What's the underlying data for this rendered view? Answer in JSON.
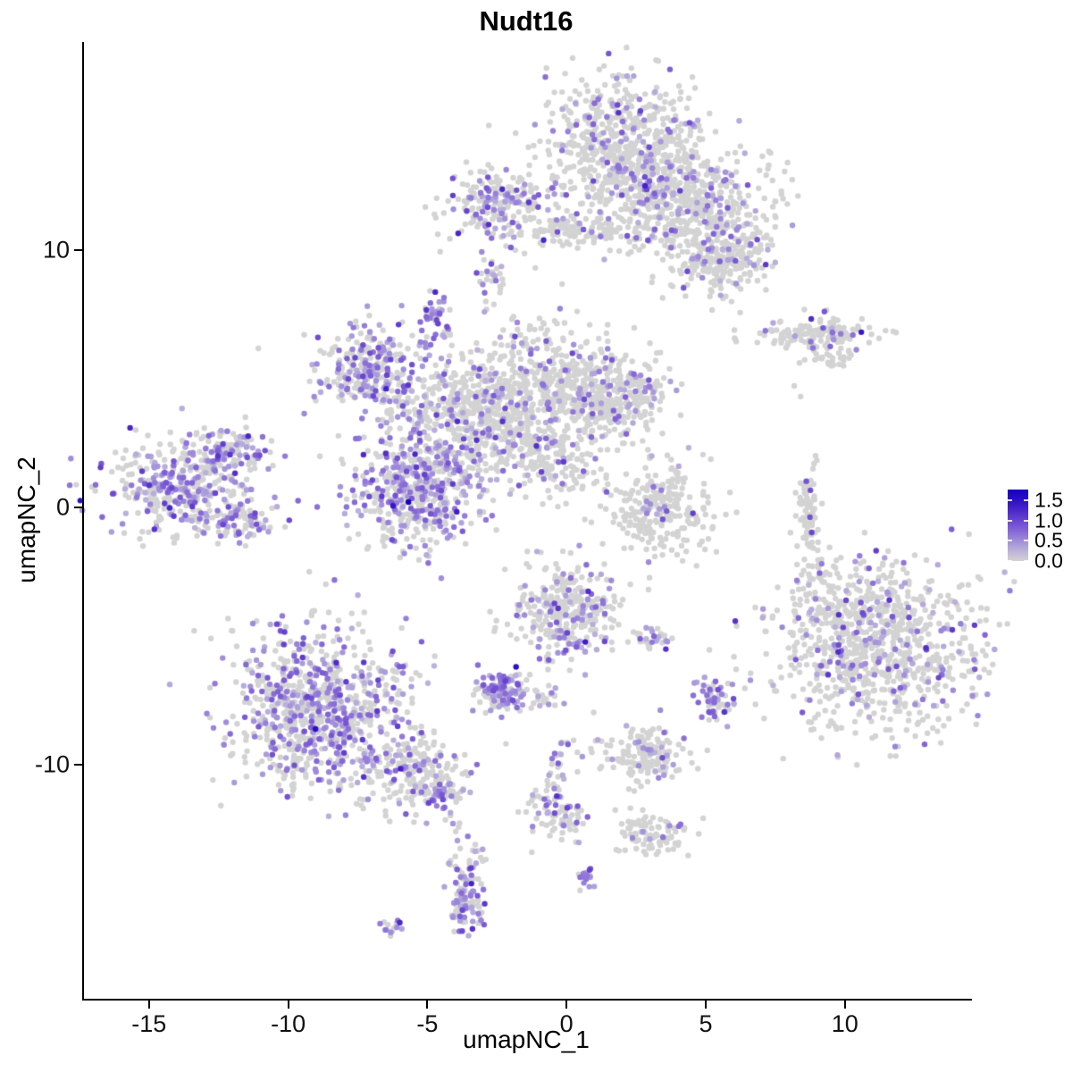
{
  "chart_data": {
    "type": "scatter",
    "title": "Nudt16",
    "xlabel": "umapNC_1",
    "ylabel": "umapNC_2",
    "xlim": [
      -17.4,
      14.5
    ],
    "ylim": [
      -19.1,
      18.09
    ],
    "x_ticks": [
      -15,
      -10,
      -5,
      0,
      5,
      10
    ],
    "y_ticks": [
      10,
      0,
      -10
    ],
    "grid": false,
    "point_radius_px": 3.2,
    "colors": {
      "background": "#ffffff",
      "axis": "#000000",
      "text": "#000000",
      "base_point": "#d3d3d3",
      "gradient_anchors": [
        [
          0.0,
          "#d3d3d3"
        ],
        [
          0.35,
          "#b2a6dc"
        ],
        [
          0.7,
          "#896cd8"
        ],
        [
          1.0,
          "#6a46d0"
        ],
        [
          1.35,
          "#401cc8"
        ],
        [
          1.7,
          "#1500c0"
        ]
      ]
    },
    "legend": {
      "labels": [
        "1.5",
        "1.0",
        "0.5",
        "0.0"
      ],
      "tick_values": [
        1.5,
        1.0,
        0.5,
        0.0
      ],
      "vmax": 1.77,
      "position": "right"
    },
    "expression": {
      "seed": 42,
      "value_base": 0.25,
      "value_spread": 0.38,
      "value_max": 1.55
    },
    "clusters": [
      {
        "name": "top-main",
        "x": 1.93,
        "y": 14.0,
        "sx": 1.44,
        "sy": 1.39,
        "n": 600,
        "frac": 0.18
      },
      {
        "name": "top-mid",
        "x": 3.53,
        "y": 12.26,
        "sx": 1.12,
        "sy": 1.04,
        "n": 300,
        "frac": 0.12
      },
      {
        "name": "top-right",
        "x": 5.3,
        "y": 11.04,
        "sx": 1.28,
        "sy": 1.22,
        "n": 350,
        "frac": 0.14
      },
      {
        "name": "top-right-arm",
        "x": 5.62,
        "y": 9.65,
        "sx": 0.8,
        "sy": 0.69,
        "n": 150,
        "frac": 0.14
      },
      {
        "name": "upper-left",
        "x": -2.41,
        "y": 11.74,
        "sx": 0.96,
        "sy": 0.63,
        "n": 220,
        "frac": 0.38
      },
      {
        "name": "upper-bridge",
        "x": 0.64,
        "y": 10.76,
        "sx": 1.44,
        "sy": 0.28,
        "n": 120,
        "frac": 0.08
      },
      {
        "name": "upper-left-tiny",
        "x": -2.73,
        "y": 8.89,
        "sx": 0.26,
        "sy": 0.35,
        "n": 25,
        "frac": 0.3
      },
      {
        "name": "right-ribbon",
        "x": 8.83,
        "y": 6.81,
        "sx": 1.12,
        "sy": 0.31,
        "n": 140,
        "frac": 0.1
      },
      {
        "name": "right-ribbon-tail",
        "x": 9.63,
        "y": 5.83,
        "sx": 0.45,
        "sy": 0.24,
        "n": 30,
        "frac": 0.05
      },
      {
        "name": "mid-left-wing",
        "x": -7.06,
        "y": 5.31,
        "sx": 0.96,
        "sy": 0.87,
        "n": 280,
        "frac": 0.45
      },
      {
        "name": "mid-knob",
        "x": -4.72,
        "y": 7.4,
        "sx": 0.29,
        "sy": 0.42,
        "n": 40,
        "frac": 0.7
      },
      {
        "name": "center-west",
        "x": -3.69,
        "y": 3.4,
        "sx": 1.44,
        "sy": 1.22,
        "n": 500,
        "frac": 0.2
      },
      {
        "name": "center-north",
        "x": -0.8,
        "y": 4.79,
        "sx": 1.44,
        "sy": 1.22,
        "n": 450,
        "frac": 0.16
      },
      {
        "name": "center-east",
        "x": 1.44,
        "y": 4.27,
        "sx": 1.12,
        "sy": 0.87,
        "n": 300,
        "frac": 0.2
      },
      {
        "name": "center-tail",
        "x": -0.96,
        "y": 2.01,
        "sx": 1.12,
        "sy": 0.62,
        "n": 180,
        "frac": 0.15,
        "rot": -25
      },
      {
        "name": "center-south-dense",
        "x": -5.29,
        "y": 0.63,
        "sx": 1.22,
        "sy": 1.04,
        "n": 450,
        "frac": 0.5
      },
      {
        "name": "far-left",
        "x": -13.8,
        "y": 0.8,
        "sx": 1.35,
        "sy": 1.04,
        "n": 420,
        "frac": 0.45
      },
      {
        "name": "far-left-arm-ne",
        "x": -11.87,
        "y": 2.19,
        "sx": 0.64,
        "sy": 0.42,
        "n": 80,
        "frac": 0.4
      },
      {
        "name": "far-left-arm-e",
        "x": -11.55,
        "y": -0.59,
        "sx": 0.58,
        "sy": 0.35,
        "n": 60,
        "frac": 0.35
      },
      {
        "name": "mid-right-mushroom",
        "x": 3.37,
        "y": -0.07,
        "sx": 0.9,
        "sy": 0.87,
        "n": 250,
        "frac": 0.07
      },
      {
        "name": "right-sliver",
        "x": 8.66,
        "y": -0.07,
        "sx": 0.22,
        "sy": 0.87,
        "n": 80,
        "frac": 0.06
      },
      {
        "name": "right-big",
        "x": 11.23,
        "y": -5.28,
        "sx": 1.76,
        "sy": 1.67,
        "n": 900,
        "frac": 0.17
      },
      {
        "name": "right-big-spray",
        "x": 9.31,
        "y": -2.85,
        "sx": 0.8,
        "sy": 0.6,
        "n": 40,
        "frac": 0.05
      },
      {
        "name": "bottom-center",
        "x": 0.0,
        "y": -4.06,
        "sx": 0.96,
        "sy": 0.97,
        "n": 320,
        "frac": 0.28
      },
      {
        "name": "bottom-knot",
        "x": -2.34,
        "y": -7.08,
        "sx": 0.51,
        "sy": 0.42,
        "n": 120,
        "frac": 0.6
      },
      {
        "name": "bottom-knot-east",
        "x": -0.96,
        "y": -7.36,
        "sx": 0.35,
        "sy": 0.24,
        "n": 20,
        "frac": 0.3
      },
      {
        "name": "small-pair",
        "x": 3.11,
        "y": -5.1,
        "sx": 0.38,
        "sy": 0.21,
        "n": 30,
        "frac": 0.35
      },
      {
        "name": "small-east",
        "x": 5.39,
        "y": -7.43,
        "sx": 0.32,
        "sy": 0.42,
        "n": 60,
        "frac": 0.5
      },
      {
        "name": "bottom-left-main",
        "x": -8.99,
        "y": -7.71,
        "sx": 1.54,
        "sy": 1.56,
        "n": 800,
        "frac": 0.4
      },
      {
        "name": "bottom-left-tail",
        "x": -5.62,
        "y": -10.31,
        "sx": 0.96,
        "sy": 0.76,
        "n": 200,
        "frac": 0.3
      },
      {
        "name": "bottom-left-tip",
        "x": -4.43,
        "y": -11.11,
        "sx": 0.38,
        "sy": 0.35,
        "n": 50,
        "frac": 0.35
      },
      {
        "name": "bottom-mid-east",
        "x": 2.79,
        "y": -9.62,
        "sx": 0.71,
        "sy": 0.52,
        "n": 150,
        "frac": 0.12
      },
      {
        "name": "strand",
        "x": -0.55,
        "y": -10.83,
        "sx": 0.3,
        "sy": 1.04,
        "n": 60,
        "frac": 0.3,
        "rot": -22
      },
      {
        "name": "strand-foot",
        "x": -0.1,
        "y": -12.15,
        "sx": 0.35,
        "sy": 0.42,
        "n": 50,
        "frac": 0.3
      },
      {
        "name": "strand-east",
        "x": 3.05,
        "y": -12.74,
        "sx": 0.64,
        "sy": 0.38,
        "n": 100,
        "frac": 0.12
      },
      {
        "name": "tiny-dense",
        "x": 0.67,
        "y": -14.38,
        "sx": 0.16,
        "sy": 0.28,
        "n": 18,
        "frac": 0.7
      },
      {
        "name": "bottom-blob",
        "x": -3.53,
        "y": -15.0,
        "sx": 0.32,
        "sy": 0.83,
        "n": 120,
        "frac": 0.45
      },
      {
        "name": "bottom-tiny",
        "x": -6.26,
        "y": -16.39,
        "sx": 0.22,
        "sy": 0.19,
        "n": 14,
        "frac": 0.6
      }
    ],
    "singles": [
      [
        -4.43,
        -11.7,
        0.5
      ],
      [
        -4.17,
        -11.98,
        0
      ],
      [
        -4.08,
        -12.29,
        0.45
      ],
      [
        -3.98,
        -12.6,
        0
      ],
      [
        -3.92,
        -12.95,
        0.4
      ],
      [
        -3.82,
        -13.26,
        0
      ],
      [
        -11.07,
        6.18,
        0
      ],
      [
        -1.12,
        9.31,
        0
      ],
      [
        -0.16,
        8.68,
        0
      ],
      [
        8.18,
        4.72,
        0
      ],
      [
        8.41,
        4.31,
        0
      ],
      [
        8.28,
        -2.22,
        0
      ],
      [
        4.17,
        -2.08,
        0
      ],
      [
        3.37,
        -7.88,
        0.5
      ],
      [
        -2.9,
        8.0,
        0
      ],
      [
        -2.95,
        7.6,
        0.35
      ]
    ],
    "highlights": [
      [
        -5.68,
        0.21,
        1.7
      ],
      [
        10.59,
        6.81,
        1.4
      ],
      [
        2.82,
        12.5,
        1.3
      ]
    ]
  }
}
